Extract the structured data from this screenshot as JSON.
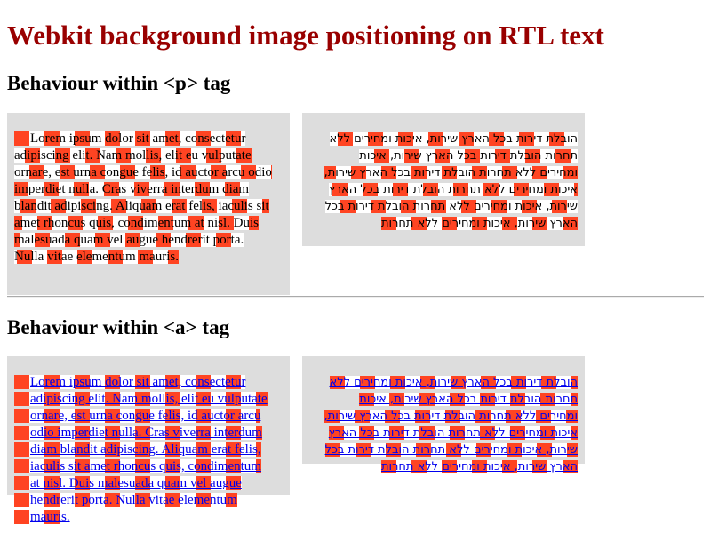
{
  "page": {
    "title": "Webkit background image positioning on RTL text"
  },
  "sections": {
    "p_heading": "Behaviour within <p> tag",
    "a_heading": "Behaviour within <a> tag"
  },
  "texts": {
    "lorem": "Lorem ipsum dolor sit amet, consectetur adipiscing elit. Nam mollis, elit eu vulputate ornare, est urna congue felis, id auctor arcu odio imperdiet nulla. Cras viverra interdum diam blandit adipiscing. Aliquam erat felis, iaculis sit amet rhoncus quis, condimentum at nisl. Duis malesuada quam vel augue hendrerit porta. Nulla vitae elementum mauris.",
    "hebrew": "הובלת דירות בכל הארץ שירות, איכות ומחירים ללא תחרות הובלת דירות בכל הארץ שירות, איכות ומחירים ללא תחרות הובלת דירות בכל הארץ שירות, איכות ומחירים ללא תחרות הובלת דירות בכל הארץ שירות, איכות ומחירים ללא תחרות הובלת דירות בכל הארץ שירות, איכות ומחירים ללא תחרות"
  },
  "colors": {
    "title": "#990000",
    "box_background": "#dddddd",
    "checker_red": "#ff4422",
    "link": "#0000ee"
  }
}
